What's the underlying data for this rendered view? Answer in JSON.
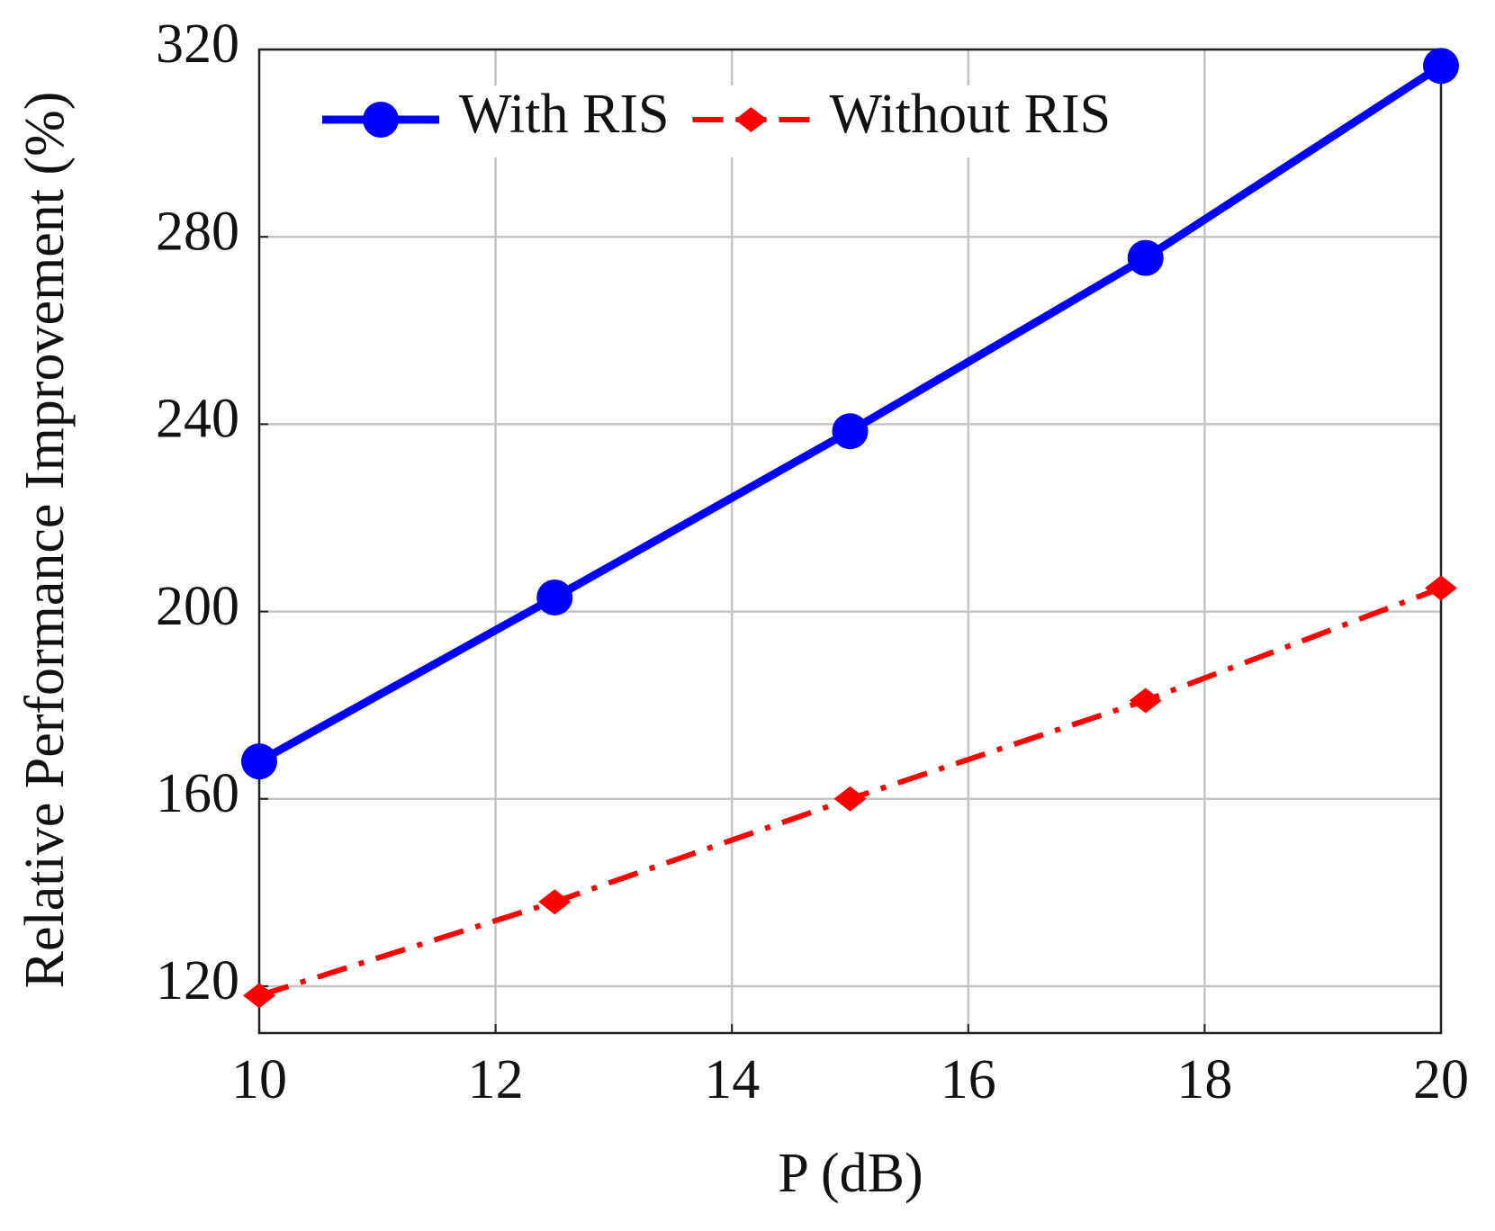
{
  "chart_data": {
    "type": "line",
    "xlabel": "P (dB)",
    "ylabel": "Relative Performance Improvement (%)",
    "x": [
      10,
      12.5,
      15,
      17.5,
      20
    ],
    "series": [
      {
        "name": "With RIS",
        "color": "#0000ff",
        "marker": "circle",
        "linestyle": "solid",
        "values": [
          168,
          203,
          238.5,
          275.5,
          316.5
        ]
      },
      {
        "name": "Without RIS",
        "color": "#ff0000",
        "marker": "diamond",
        "linestyle": "dashdot",
        "values": [
          118,
          138,
          160,
          181,
          205
        ]
      }
    ],
    "xlim": [
      10,
      20
    ],
    "xticks": [
      10,
      12,
      14,
      16,
      18,
      20
    ],
    "ylim": [
      110,
      320
    ],
    "yticks": [
      120,
      160,
      200,
      240,
      280,
      320
    ],
    "grid": true,
    "legend": "upper left"
  }
}
